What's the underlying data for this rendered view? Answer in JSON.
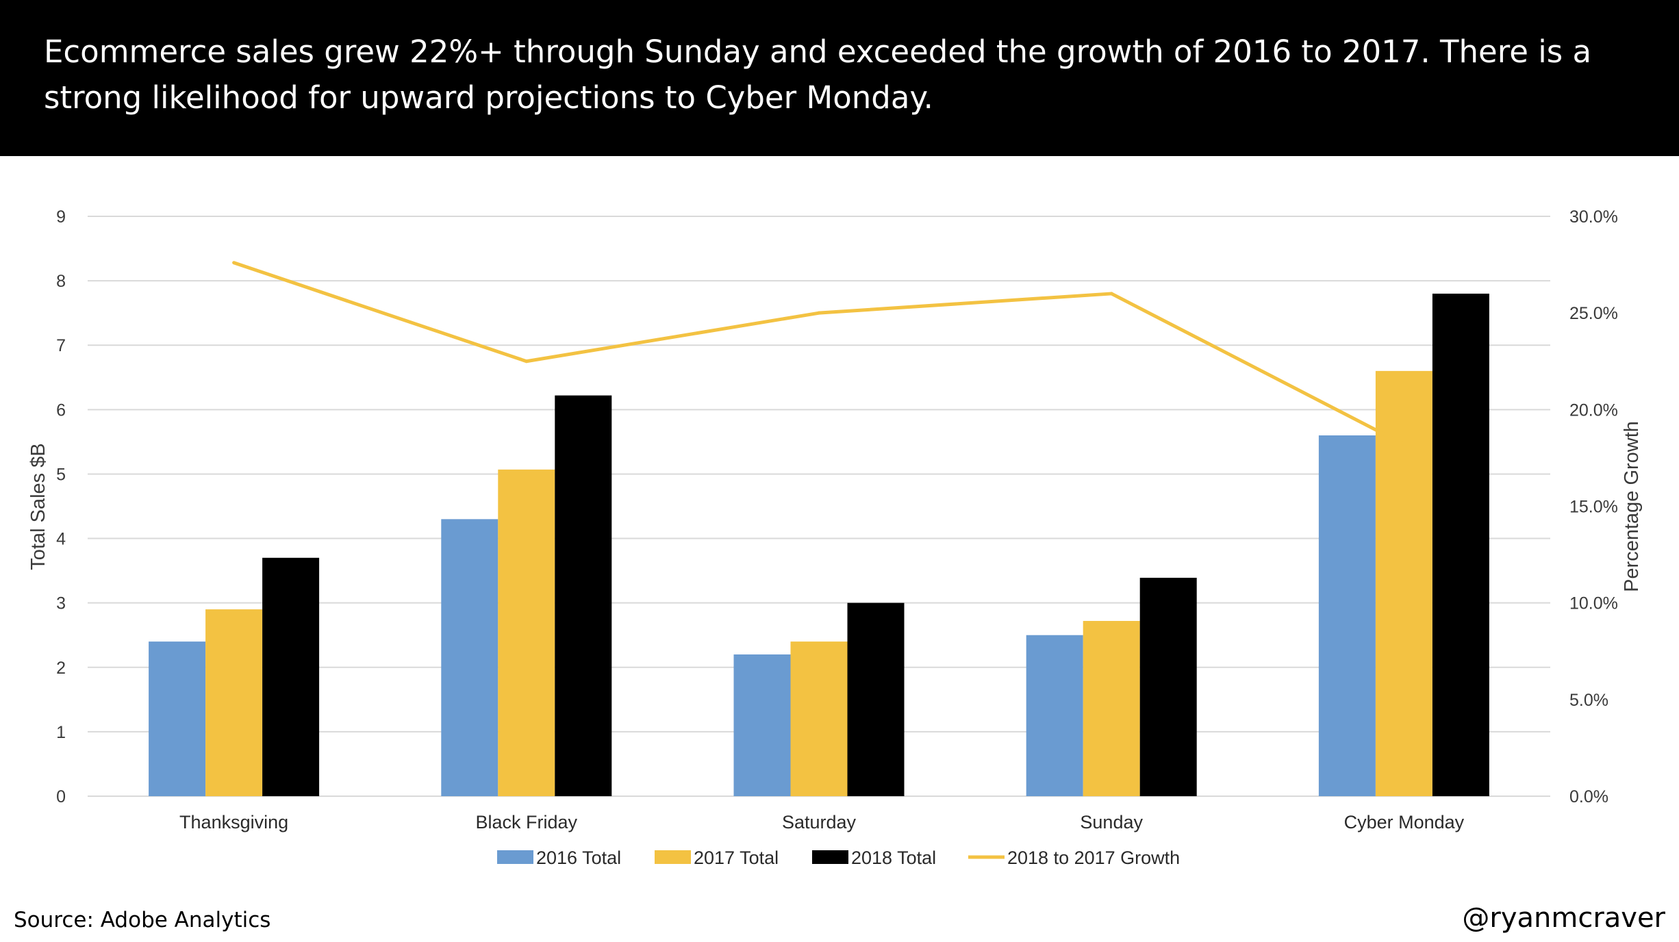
{
  "header": {
    "text": "Ecommerce sales grew 22%+ through Sunday and exceeded the growth of 2016 to 2017. There is a strong likelihood for upward projections to Cyber Monday."
  },
  "footer": {
    "source": "Source: Adobe Analytics",
    "handle": "@ryanmcraver"
  },
  "colors": {
    "s2016": "#6a9bd1",
    "s2017": "#f3c242",
    "s2018": "#000000",
    "growth": "#f3c242",
    "grid": "#d9d9d9"
  },
  "chart_data": {
    "type": "bar",
    "title": "",
    "xlabel": "",
    "ylabel": "Total Sales $B",
    "y2label": "Percentage Growth",
    "ylim": [
      0,
      9
    ],
    "y2lim": [
      0,
      30
    ],
    "yticks": [
      "0",
      "1",
      "2",
      "3",
      "4",
      "5",
      "6",
      "7",
      "8",
      "9"
    ],
    "y2ticks": [
      "0.0%",
      "5.0%",
      "10.0%",
      "15.0%",
      "20.0%",
      "25.0%",
      "30.0%"
    ],
    "categories": [
      "Thanksgiving",
      "Black Friday",
      "Saturday",
      "Sunday",
      "Cyber Monday"
    ],
    "series": [
      {
        "name": "2016 Total",
        "type": "bar",
        "axis": "left",
        "values": [
          2.4,
          4.3,
          2.2,
          2.5,
          5.6
        ]
      },
      {
        "name": "2017 Total",
        "type": "bar",
        "axis": "left",
        "values": [
          2.9,
          5.07,
          2.4,
          2.72,
          6.6
        ]
      },
      {
        "name": "2018 Total",
        "type": "bar",
        "axis": "left",
        "values": [
          3.7,
          6.22,
          3.0,
          3.39,
          7.8
        ]
      },
      {
        "name": "2018 to 2017 Growth",
        "type": "line",
        "axis": "right",
        "values": [
          27.6,
          22.5,
          25.0,
          26.0,
          18.2
        ]
      }
    ],
    "legend": "bottom"
  }
}
